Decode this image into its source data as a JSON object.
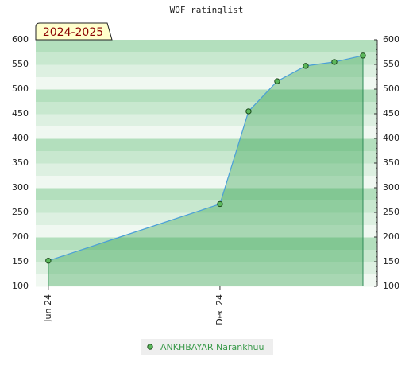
{
  "chart_data": {
    "type": "area",
    "title": "WOF ratinglist",
    "badge": "2024-2025",
    "x": [
      0,
      6,
      7,
      8,
      9,
      10,
      11
    ],
    "xlim": [
      -0.44,
      11.5
    ],
    "xticks": [
      {
        "value": 0,
        "label": "Jun 24"
      },
      {
        "value": 6,
        "label": "Dec 24"
      }
    ],
    "ylim": [
      100,
      600
    ],
    "yticks": [
      100,
      150,
      200,
      250,
      300,
      350,
      400,
      450,
      500,
      550,
      600
    ],
    "series": [
      {
        "name": "ANKHBAYAR Narankhuu",
        "color": "#4a9fd8",
        "values": [
          152,
          267,
          455,
          516,
          547,
          555,
          568
        ]
      }
    ],
    "grid": true,
    "legend": "bottom"
  }
}
